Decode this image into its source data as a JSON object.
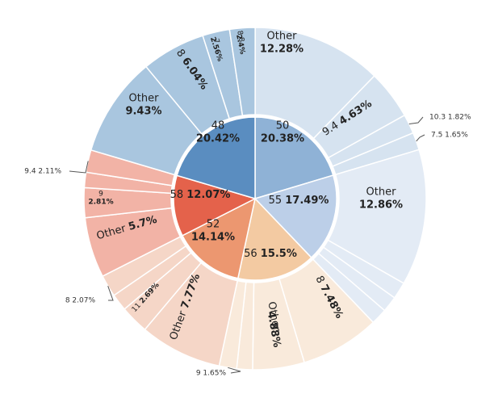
{
  "chart_data": {
    "type": "sunburst",
    "colors": {
      "48": {
        "inner": "#5a8dc0",
        "outer": "#a9c6df"
      },
      "50": {
        "inner": "#8fb2d6",
        "outer": "#d6e3f0"
      },
      "55": {
        "inner": "#bccfe8",
        "outer": "#e3ebf5"
      },
      "56": {
        "inner": "#f3caa2",
        "outer": "#f9eadb"
      },
      "52": {
        "inner": "#ec9770",
        "outer": "#f5d6c7"
      },
      "58": {
        "inner": "#e4624b",
        "outer": "#f2b3a6"
      }
    },
    "inner": [
      {
        "label": "50",
        "pct_label": "20.38%",
        "value": 20.38
      },
      {
        "label": "55",
        "pct_label": "17.49%",
        "value": 17.49
      },
      {
        "label": "56",
        "pct_label": "15.5%",
        "value": 15.5
      },
      {
        "label": "52",
        "pct_label": "14.14%",
        "value": 14.14
      },
      {
        "label": "58",
        "pct_label": "12.07%",
        "value": 12.07
      },
      {
        "label": "48",
        "pct_label": "20.42%",
        "value": 20.42
      }
    ],
    "outer": [
      {
        "parent": "50",
        "label": "Other",
        "pct_label": "12.28%",
        "value": 12.28
      },
      {
        "parent": "50",
        "label": "9.4",
        "pct_label": "4.63%",
        "value": 4.63
      },
      {
        "parent": "50",
        "label": "10.3",
        "pct_label": "1.82%",
        "value": 1.82
      },
      {
        "parent": "50",
        "label": "7.5",
        "pct_label": "1.65%",
        "value": 1.65
      },
      {
        "parent": "55",
        "label": "Other",
        "pct_label": "12.86%",
        "value": 12.86
      },
      {
        "parent": "55",
        "label": "",
        "pct_label": "",
        "value": 1.6
      },
      {
        "parent": "55",
        "label": "",
        "pct_label": "",
        "value": 1.5
      },
      {
        "parent": "55",
        "label": "",
        "pct_label": "",
        "value": 1.53
      },
      {
        "parent": "56",
        "label": "8",
        "pct_label": "7.48%",
        "value": 7.48
      },
      {
        "parent": "56",
        "label": "Other",
        "pct_label": "4.88%",
        "value": 4.88
      },
      {
        "parent": "56",
        "label": "",
        "pct_label": "",
        "value": 1.49
      },
      {
        "parent": "56",
        "label": "9",
        "pct_label": "1.65%",
        "value": 1.65
      },
      {
        "parent": "52",
        "label": "Other",
        "pct_label": "7.77%",
        "value": 7.77
      },
      {
        "parent": "52",
        "label": "11",
        "pct_label": "2.69%",
        "value": 2.69
      },
      {
        "parent": "52",
        "label": "",
        "pct_label": "",
        "value": 1.61
      },
      {
        "parent": "52",
        "label": "8",
        "pct_label": "2.07%",
        "value": 2.07
      },
      {
        "parent": "58",
        "label": "Other",
        "pct_label": "5.7%",
        "value": 5.7
      },
      {
        "parent": "58",
        "label": "9",
        "pct_label": "2.81%",
        "value": 2.81
      },
      {
        "parent": "58",
        "label": "",
        "pct_label": "",
        "value": 1.45
      },
      {
        "parent": "58",
        "label": "9.4",
        "pct_label": "2.11%",
        "value": 2.11
      },
      {
        "parent": "48",
        "label": "Other",
        "pct_label": "9.43%",
        "value": 9.43
      },
      {
        "parent": "48",
        "label": "8",
        "pct_label": "6.04%",
        "value": 6.04
      },
      {
        "parent": "48",
        "label": "7",
        "pct_label": "2.56%",
        "value": 2.56
      },
      {
        "parent": "48",
        "label": "8.8",
        "pct_label": "2.4%",
        "value": 2.4
      }
    ]
  }
}
